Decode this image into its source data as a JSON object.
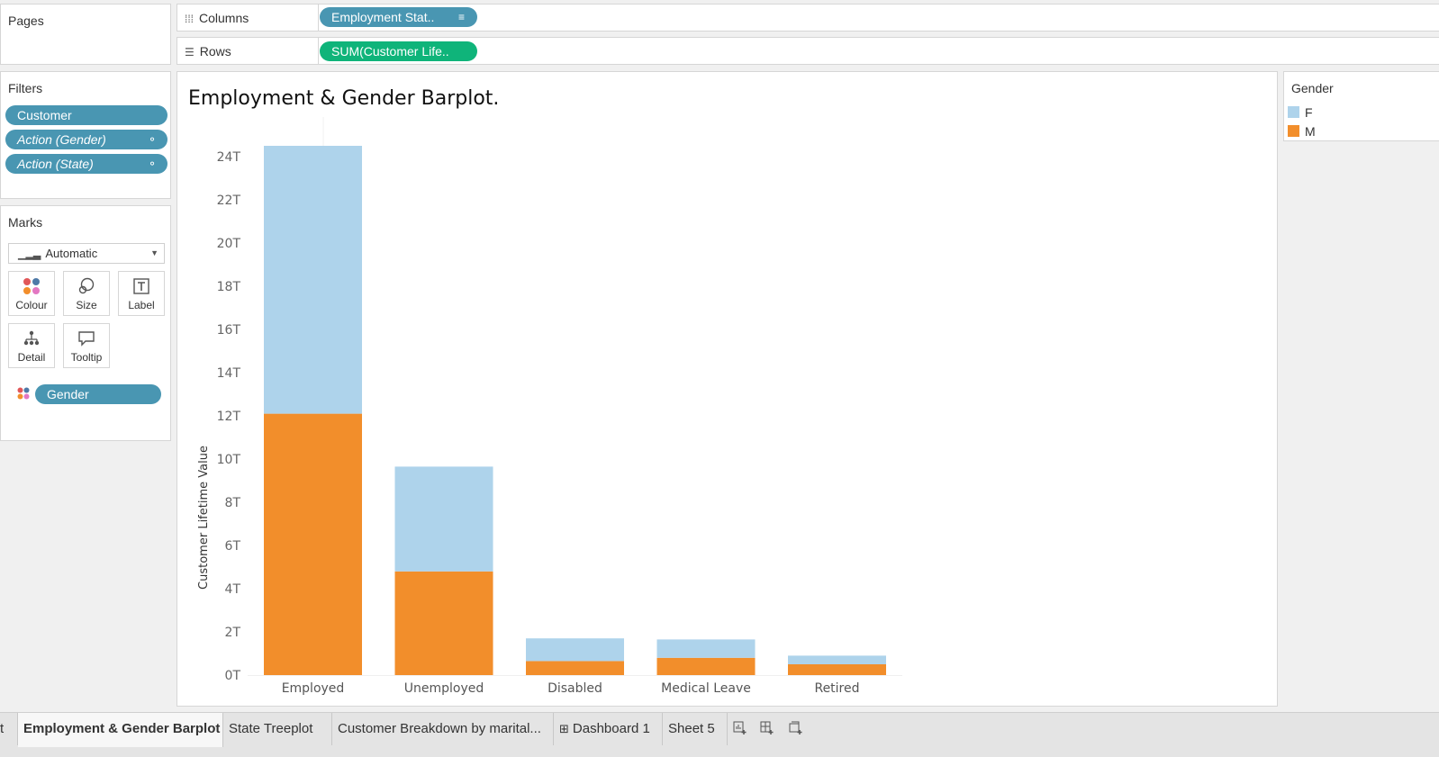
{
  "pages": {
    "title": "Pages"
  },
  "columns_shelf": {
    "label": "Columns",
    "icon": "columns-icon",
    "pill": "Employment Stat.."
  },
  "rows_shelf": {
    "label": "Rows",
    "icon": "rows-icon",
    "pill": "SUM(Customer Life.."
  },
  "filters": {
    "title": "Filters",
    "items": [
      {
        "label": "Customer"
      },
      {
        "label": "Action (Gender)",
        "icon": "link-icon"
      },
      {
        "label": "Action (State)",
        "icon": "link-icon"
      }
    ]
  },
  "marks": {
    "title": "Marks",
    "type_value": "Automatic",
    "buttons": [
      {
        "label": "Colour",
        "icon": "colour-icon"
      },
      {
        "label": "Size",
        "icon": "size-icon"
      },
      {
        "label": "Label",
        "icon": "label-icon"
      },
      {
        "label": "Detail",
        "icon": "detail-icon"
      },
      {
        "label": "Tooltip",
        "icon": "tooltip-icon"
      }
    ],
    "colour_pill": "Gender"
  },
  "legend": {
    "title": "Gender",
    "items": [
      {
        "label": "F",
        "color": "#aed3eb"
      },
      {
        "label": "M",
        "color": "#f28e2b"
      }
    ]
  },
  "chart_data": {
    "type": "bar",
    "stacked": true,
    "title": "Employment & Gender Barplot.",
    "xlabel": "",
    "ylabel": "Customer Lifetime Value",
    "categories": [
      "Employed",
      "Unemployed",
      "Disabled",
      "Medical Leave",
      "Retired"
    ],
    "series": [
      {
        "name": "M",
        "color": "#f28e2b",
        "values": [
          12.1,
          4.8,
          0.65,
          0.8,
          0.5
        ]
      },
      {
        "name": "F",
        "color": "#aed3eb",
        "values": [
          12.4,
          4.85,
          1.05,
          0.85,
          0.4
        ]
      }
    ],
    "yticks": [
      {
        "value": 0,
        "label": "0T"
      },
      {
        "value": 2,
        "label": "2T"
      },
      {
        "value": 4,
        "label": "4T"
      },
      {
        "value": 6,
        "label": "6T"
      },
      {
        "value": 8,
        "label": "8T"
      },
      {
        "value": 10,
        "label": "10T"
      },
      {
        "value": 12,
        "label": "12T"
      },
      {
        "value": 14,
        "label": "14T"
      },
      {
        "value": 16,
        "label": "16T"
      },
      {
        "value": 18,
        "label": "18T"
      },
      {
        "value": 20,
        "label": "20T"
      },
      {
        "value": 22,
        "label": "22T"
      },
      {
        "value": 24,
        "label": "24T"
      }
    ],
    "ylim": [
      0,
      24.5
    ],
    "grid": false,
    "legend_position": "right"
  },
  "tabs": [
    {
      "label": "t"
    },
    {
      "label": "Employment & Gender Barplot",
      "active": true
    },
    {
      "label": "State Treeplot"
    },
    {
      "label": "Customer Breakdown by marital..."
    },
    {
      "label": "Dashboard 1",
      "icon": "dashboard-icon"
    },
    {
      "label": "Sheet 5"
    },
    {
      "label": "",
      "icon": "new-worksheet-icon"
    },
    {
      "label": "",
      "icon": "new-dashboard-icon"
    },
    {
      "label": "",
      "icon": "new-story-icon"
    }
  ]
}
